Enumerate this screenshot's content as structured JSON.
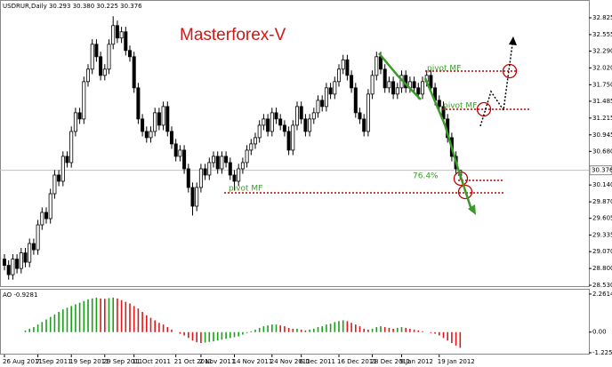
{
  "chart_data": {
    "type": "candlestick",
    "header": "USDRUR,Daily  30.293 30.380 30.225 30.376",
    "title": "Masterforex-V",
    "annotations": [
      "pivot MF",
      "pivot MF",
      "pivot MF",
      "76.4%"
    ],
    "categories": [
      "26 Aug 2011",
      null,
      null,
      null,
      null,
      null,
      null,
      null,
      "7 Sep 2011",
      null,
      null,
      null,
      null,
      null,
      null,
      null,
      "19 Sep 2011",
      null,
      null,
      null,
      null,
      null,
      null,
      null,
      "29 Sep 2011",
      null,
      null,
      null,
      null,
      null,
      null,
      "11 Oct 2011",
      null,
      null,
      null,
      null,
      null,
      null,
      null,
      null,
      null,
      "21 Oct 2011",
      null,
      null,
      null,
      null,
      null,
      "2 Nov 2011",
      null,
      null,
      null,
      null,
      null,
      null,
      null,
      "14 Nov 2011",
      null,
      null,
      null,
      null,
      null,
      null,
      null,
      null,
      "24 Nov 2011",
      null,
      null,
      null,
      null,
      null,
      null,
      "6 Dec 2011",
      null,
      null,
      null,
      null,
      null,
      null,
      null,
      null,
      "16 Dec 2011",
      null,
      null,
      null,
      null,
      null,
      null,
      null,
      "28 Dec 2011",
      null,
      null,
      null,
      null,
      null,
      null,
      "9 Jan 2012",
      null,
      null,
      null,
      null,
      null,
      null,
      null,
      null,
      "19 Jan 2012",
      null,
      null,
      null,
      null,
      null
    ],
    "ohlc": [
      [
        28.95,
        29.03,
        28.77,
        28.85
      ],
      [
        28.85,
        28.93,
        28.62,
        28.7
      ],
      [
        28.7,
        29.03,
        28.62,
        28.95
      ],
      [
        28.95,
        29.03,
        28.72,
        28.8
      ],
      [
        28.8,
        29.13,
        28.72,
        29.05
      ],
      [
        29.05,
        29.13,
        28.82,
        28.9
      ],
      [
        28.9,
        29.28,
        28.82,
        29.2
      ],
      [
        29.2,
        29.28,
        29.02,
        29.1
      ],
      [
        29.1,
        29.58,
        29.02,
        29.5
      ],
      [
        29.5,
        29.78,
        29.42,
        29.7
      ],
      [
        29.7,
        29.78,
        29.52,
        29.6
      ],
      [
        29.6,
        30.08,
        29.52,
        30.0
      ],
      [
        30.0,
        30.38,
        29.92,
        30.3
      ],
      [
        30.3,
        30.38,
        30.12,
        30.2
      ],
      [
        30.2,
        30.68,
        30.12,
        30.6
      ],
      [
        30.6,
        30.68,
        30.42,
        30.5
      ],
      [
        30.5,
        31.08,
        30.42,
        31.0
      ],
      [
        31.0,
        31.38,
        30.92,
        31.3
      ],
      [
        31.3,
        31.38,
        31.12,
        31.2
      ],
      [
        31.2,
        31.88,
        31.12,
        31.8
      ],
      [
        31.8,
        32.08,
        31.72,
        32.0
      ],
      [
        32.0,
        32.48,
        31.92,
        32.4
      ],
      [
        32.4,
        32.48,
        32.12,
        32.2
      ],
      [
        32.2,
        32.28,
        31.82,
        31.9
      ],
      [
        31.9,
        32.08,
        31.82,
        32.0
      ],
      [
        32.0,
        32.48,
        31.92,
        32.4
      ],
      [
        32.4,
        32.85,
        32.32,
        32.7
      ],
      [
        32.7,
        32.78,
        32.42,
        32.5
      ],
      [
        32.5,
        32.68,
        32.42,
        32.6
      ],
      [
        32.6,
        32.68,
        32.22,
        32.3
      ],
      [
        32.3,
        32.38,
        32.12,
        32.2
      ],
      [
        32.2,
        32.28,
        31.62,
        31.7
      ],
      [
        31.7,
        31.78,
        31.12,
        31.2
      ],
      [
        31.2,
        31.28,
        30.92,
        31.0
      ],
      [
        31.0,
        31.08,
        30.82,
        30.9
      ],
      [
        30.9,
        31.08,
        30.82,
        31.0
      ],
      [
        31.0,
        31.38,
        30.92,
        31.3
      ],
      [
        31.3,
        31.38,
        31.02,
        31.1
      ],
      [
        31.1,
        31.48,
        31.02,
        31.4
      ],
      [
        31.4,
        31.48,
        30.92,
        31.0
      ],
      [
        31.0,
        31.08,
        30.72,
        30.8
      ],
      [
        30.8,
        30.88,
        30.52,
        30.6
      ],
      [
        30.6,
        30.78,
        30.52,
        30.7
      ],
      [
        30.7,
        30.78,
        30.32,
        30.4
      ],
      [
        30.4,
        30.48,
        30.02,
        30.1
      ],
      [
        30.1,
        30.18,
        29.65,
        29.8
      ],
      [
        29.8,
        30.18,
        29.72,
        30.1
      ],
      [
        30.1,
        30.48,
        30.02,
        30.4
      ],
      [
        30.4,
        30.48,
        30.22,
        30.3
      ],
      [
        30.3,
        30.58,
        30.22,
        30.5
      ],
      [
        30.5,
        30.68,
        30.42,
        30.6
      ],
      [
        30.6,
        30.68,
        30.32,
        30.4
      ],
      [
        30.4,
        30.68,
        30.32,
        30.6
      ],
      [
        30.6,
        30.68,
        30.42,
        30.5
      ],
      [
        30.5,
        30.58,
        30.22,
        30.3
      ],
      [
        30.3,
        30.38,
        30.05,
        30.2
      ],
      [
        30.2,
        30.48,
        30.12,
        30.4
      ],
      [
        30.4,
        30.58,
        30.32,
        30.5
      ],
      [
        30.5,
        30.78,
        30.42,
        30.7
      ],
      [
        30.7,
        30.88,
        30.62,
        30.8
      ],
      [
        30.8,
        30.98,
        30.72,
        30.9
      ],
      [
        30.9,
        31.18,
        30.82,
        31.1
      ],
      [
        31.1,
        31.28,
        31.02,
        31.2
      ],
      [
        31.2,
        31.28,
        30.92,
        31.0
      ],
      [
        31.0,
        31.38,
        30.92,
        31.3
      ],
      [
        31.3,
        31.38,
        31.12,
        31.2
      ],
      [
        31.2,
        31.28,
        31.02,
        31.1
      ],
      [
        31.1,
        31.18,
        30.92,
        31.0
      ],
      [
        31.0,
        31.08,
        30.62,
        30.7
      ],
      [
        30.7,
        31.18,
        30.62,
        31.1
      ],
      [
        31.1,
        31.48,
        31.02,
        31.4
      ],
      [
        31.4,
        31.48,
        31.12,
        31.2
      ],
      [
        31.2,
        31.28,
        30.92,
        31.0
      ],
      [
        31.0,
        31.28,
        30.92,
        31.2
      ],
      [
        31.2,
        31.38,
        31.12,
        31.3
      ],
      [
        31.3,
        31.58,
        31.22,
        31.5
      ],
      [
        31.5,
        31.58,
        31.32,
        31.4
      ],
      [
        31.4,
        31.78,
        31.32,
        31.7
      ],
      [
        31.7,
        31.78,
        31.52,
        31.6
      ],
      [
        31.6,
        31.88,
        31.52,
        31.8
      ],
      [
        31.8,
        32.08,
        31.72,
        32.0
      ],
      [
        32.0,
        32.23,
        31.92,
        32.15
      ],
      [
        32.15,
        32.23,
        31.82,
        31.9
      ],
      [
        31.9,
        31.98,
        31.62,
        31.7
      ],
      [
        31.7,
        31.78,
        31.22,
        31.3
      ],
      [
        31.3,
        31.38,
        31.12,
        31.2
      ],
      [
        31.2,
        31.28,
        30.92,
        31.0
      ],
      [
        31.0,
        31.68,
        30.92,
        31.6
      ],
      [
        31.6,
        31.98,
        31.52,
        31.9
      ],
      [
        31.9,
        32.28,
        31.82,
        32.2
      ],
      [
        32.2,
        32.28,
        31.92,
        32.0
      ],
      [
        32.0,
        32.08,
        31.62,
        31.7
      ],
      [
        31.7,
        31.88,
        31.62,
        31.8
      ],
      [
        31.8,
        31.88,
        31.52,
        31.6
      ],
      [
        31.6,
        31.78,
        31.52,
        31.7
      ],
      [
        31.7,
        31.98,
        31.62,
        31.9
      ],
      [
        31.9,
        31.98,
        31.62,
        31.7
      ],
      [
        31.7,
        31.88,
        31.62,
        31.8
      ],
      [
        31.8,
        31.88,
        31.62,
        31.7
      ],
      [
        31.7,
        31.78,
        31.52,
        31.6
      ],
      [
        31.6,
        31.88,
        31.52,
        31.8
      ],
      [
        31.8,
        31.98,
        31.72,
        31.9
      ],
      [
        31.9,
        31.98,
        31.62,
        31.7
      ],
      [
        31.7,
        31.78,
        31.42,
        31.5
      ],
      [
        31.5,
        31.58,
        31.32,
        31.4
      ],
      [
        31.4,
        31.48,
        31.12,
        31.2
      ],
      [
        31.2,
        31.28,
        30.82,
        30.9
      ],
      [
        30.9,
        30.98,
        30.52,
        30.6
      ],
      [
        30.6,
        30.68,
        30.32,
        30.4
      ],
      [
        30.293,
        30.38,
        30.225,
        30.376
      ]
    ],
    "up_color": "#ffffff",
    "down_color": "#000000",
    "ylim": [
      28.516,
      33.082
    ],
    "yticks": [
      32.825,
      32.555,
      {
        "value": 32.29,
        "label": "32.290"
      },
      {
        "value": 32.02,
        "label": "32.020"
      },
      {
        "value": 31.75,
        "label": "31.750"
      },
      31.485,
      31.215,
      30.945,
      {
        "value": 30.68,
        "label": "30.680"
      },
      {
        "value": 30.14,
        "label": "30.140"
      },
      {
        "value": 29.87,
        "label": "29.870"
      },
      29.605,
      29.335,
      {
        "value": 29.07,
        "label": "29.070"
      },
      {
        "value": 28.8,
        "label": "28.800"
      },
      {
        "value": 28.53,
        "label": "28.530"
      }
    ],
    "current_price": 30.376,
    "indicator": {
      "type": "bar",
      "label": "AO -0.9281",
      "values": [
        null,
        null,
        null,
        null,
        null,
        0.1,
        0.2,
        0.3,
        0.45,
        0.6,
        0.75,
        0.9,
        1.05,
        1.2,
        1.35,
        1.45,
        1.55,
        1.65,
        1.75,
        1.85,
        1.95,
        2.0,
        2.05,
        2.0,
        1.98,
        2.02,
        2.05,
        2.0,
        1.9,
        1.8,
        1.7,
        1.55,
        1.4,
        1.2,
        1.0,
        0.85,
        0.7,
        0.55,
        0.45,
        0.3,
        0.15,
        0.0,
        -0.1,
        -0.2,
        -0.35,
        -0.5,
        -0.6,
        -0.65,
        -0.62,
        -0.58,
        -0.55,
        -0.5,
        -0.45,
        -0.4,
        -0.35,
        -0.3,
        -0.25,
        -0.15,
        -0.05,
        0.05,
        0.15,
        0.25,
        0.35,
        0.4,
        0.45,
        0.45,
        0.4,
        0.35,
        0.25,
        0.2,
        0.2,
        0.15,
        0.1,
        0.15,
        0.2,
        0.3,
        0.35,
        0.45,
        0.5,
        0.6,
        0.65,
        0.7,
        0.65,
        0.55,
        0.45,
        0.35,
        0.2,
        0.15,
        0.2,
        0.3,
        0.35,
        0.3,
        0.25,
        0.2,
        0.25,
        0.3,
        0.25,
        0.2,
        0.15,
        0.1,
        0.05,
        0.0,
        -0.05,
        -0.1,
        -0.2,
        -0.35,
        -0.5,
        -0.65,
        -0.8,
        -0.9281
      ],
      "up_color": "#18a018",
      "down_color": "#e01818",
      "ylim": [
        -1.28,
        2.52
      ],
      "yticks": [
        2.2614,
        {
          "value": 0,
          "label": "0.00"
        },
        -1.2253
      ]
    }
  }
}
